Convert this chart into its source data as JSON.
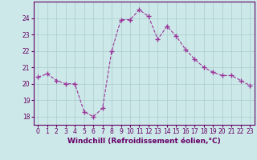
{
  "hours": [
    0,
    1,
    2,
    3,
    4,
    5,
    6,
    7,
    8,
    9,
    10,
    11,
    12,
    13,
    14,
    15,
    16,
    17,
    18,
    19,
    20,
    21,
    22,
    23
  ],
  "values": [
    20.4,
    20.6,
    20.2,
    20.0,
    20.0,
    18.3,
    18.0,
    18.5,
    22.0,
    23.9,
    23.9,
    24.5,
    24.1,
    22.7,
    23.5,
    22.9,
    22.1,
    21.5,
    21.0,
    20.7,
    20.5,
    20.5,
    20.2,
    19.9
  ],
  "line_color": "#993399",
  "marker": "+",
  "marker_size": 4,
  "bg_color": "#cce8e8",
  "grid_color": "#aacccc",
  "xlabel": "Windchill (Refroidissement éolien,°C)",
  "ylim": [
    17.5,
    25.0
  ],
  "xlim": [
    -0.5,
    23.5
  ],
  "yticks": [
    18,
    19,
    20,
    21,
    22,
    23,
    24
  ],
  "xticks": [
    0,
    1,
    2,
    3,
    4,
    5,
    6,
    7,
    8,
    9,
    10,
    11,
    12,
    13,
    14,
    15,
    16,
    17,
    18,
    19,
    20,
    21,
    22,
    23
  ],
  "tick_fontsize": 5.5,
  "label_fontsize": 6.5,
  "label_color": "#660066",
  "line_width": 0.8
}
